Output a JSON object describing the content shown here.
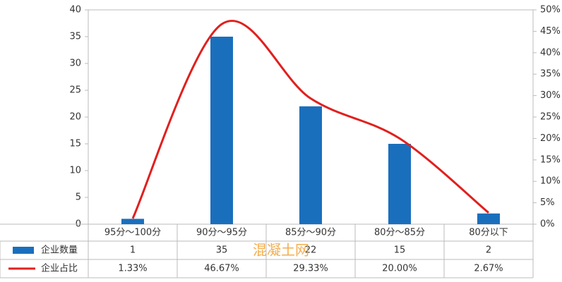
{
  "chart_data": {
    "type": "bar_line",
    "categories": [
      "95分～100分",
      "90分～95分",
      "85分～90分",
      "80分～85分",
      "80分以下"
    ],
    "series": [
      {
        "name": "企业数量",
        "color": "#1a6fbd",
        "values": [
          1,
          35,
          22,
          15,
          2
        ]
      },
      {
        "name": "企业占比",
        "color": "#e0201e",
        "axis": "y2",
        "values": [
          1.33,
          46.67,
          29.33,
          20.0,
          2.67
        ],
        "value_labels": [
          "1.33%",
          "46.67%",
          "29.33%",
          "20.00%",
          "2.67%"
        ]
      }
    ],
    "ylim": [
      0,
      40
    ],
    "yticks": [
      0,
      5,
      10,
      15,
      20,
      25,
      30,
      35,
      40
    ],
    "y2lim": [
      0,
      50
    ],
    "y2ticks": [
      {
        "value": 0,
        "label": "0%"
      },
      {
        "value": 5,
        "label": "5%"
      },
      {
        "value": 10,
        "label": "10%"
      },
      {
        "value": 15,
        "label": "15%"
      },
      {
        "value": 20,
        "label": "20%"
      },
      {
        "value": 25,
        "label": "25%"
      },
      {
        "value": 30,
        "label": "30%"
      },
      {
        "value": 35,
        "label": "35%"
      },
      {
        "value": 40,
        "label": "40%"
      },
      {
        "value": 45,
        "label": "45%"
      },
      {
        "value": 50,
        "label": "50%"
      }
    ],
    "grid": false,
    "watermark": "混凝土网"
  }
}
